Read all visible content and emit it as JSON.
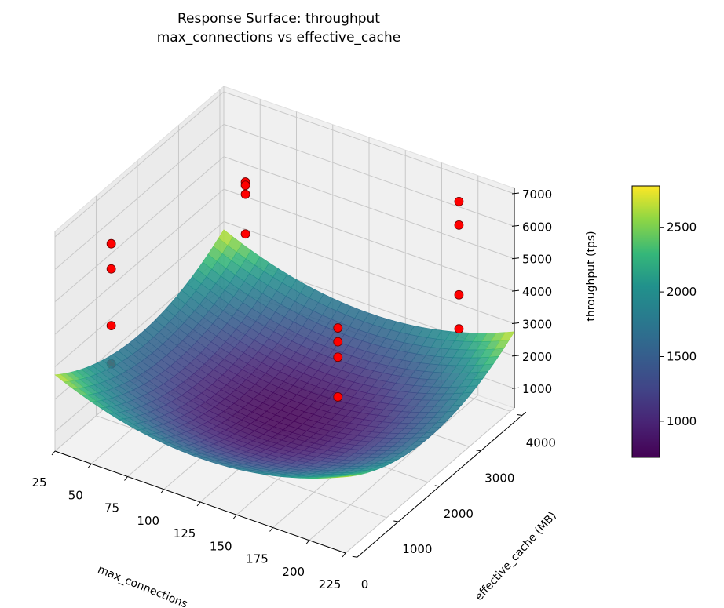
{
  "chart_data": {
    "type": "surface3d",
    "title": "Response Surface: throughput",
    "subtitle": "max_connections vs effective_cache",
    "xlabel": "max_connections",
    "ylabel": "effective_cache (MB)",
    "zlabel": "throughput (tps)",
    "xlim": [
      25,
      225
    ],
    "ylim": [
      0,
      4096
    ],
    "zlim": [
      400,
      7170
    ],
    "xticks": [
      25,
      50,
      75,
      100,
      125,
      150,
      175,
      200,
      225
    ],
    "yticks": [
      0,
      1000,
      2000,
      3000,
      4000
    ],
    "zticks": [
      1000,
      2000,
      3000,
      4000,
      5000,
      6000,
      7000
    ],
    "grid": true,
    "colormap": "viridis",
    "colorbar": {
      "clim": [
        720,
        2820
      ],
      "ticks": [
        1000,
        1500,
        2000,
        2500
      ],
      "placement": "right"
    },
    "surface": {
      "model": "z = 750 + 1000*u^2 + 1000*v^2, u,v centered normalized",
      "min": 750,
      "max": 2750
    },
    "scatter": {
      "color": "#ff0000",
      "points": [
        {
          "x": 25,
          "y": 1365,
          "z": 5300
        },
        {
          "x": 25,
          "y": 1365,
          "z": 4525
        },
        {
          "x": 25,
          "y": 1365,
          "z": 2775
        },
        {
          "x": 25,
          "y": 1365,
          "z": 1600
        },
        {
          "x": 50,
          "y": 3740,
          "z": 5000
        },
        {
          "x": 50,
          "y": 3740,
          "z": 4900
        },
        {
          "x": 50,
          "y": 3740,
          "z": 4625
        },
        {
          "x": 50,
          "y": 3740,
          "z": 3400
        },
        {
          "x": 150,
          "y": 2458,
          "z": 3475
        },
        {
          "x": 150,
          "y": 2458,
          "z": 3050
        },
        {
          "x": 150,
          "y": 2458,
          "z": 2575
        },
        {
          "x": 150,
          "y": 2458,
          "z": 1350
        },
        {
          "x": 200,
          "y": 3633,
          "z": 6875
        },
        {
          "x": 200,
          "y": 3633,
          "z": 6150
        },
        {
          "x": 200,
          "y": 3633,
          "z": 4000
        },
        {
          "x": 200,
          "y": 3633,
          "z": 2950
        }
      ]
    }
  }
}
